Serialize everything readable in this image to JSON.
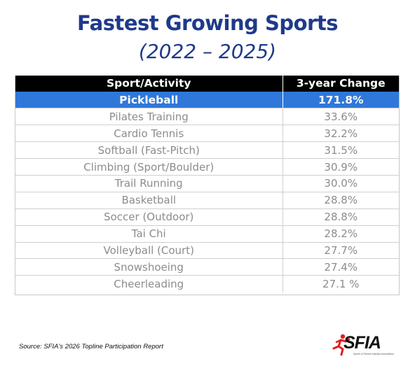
{
  "title": "Fastest Growing Sports",
  "subtitle": "(2022 – 2025)",
  "source": "Source: SFIA's 2026 Topline Participation Report",
  "logo": {
    "text": "SFIA",
    "tagline": "Sports & Fitness Industry Association",
    "accent_color": "#e02020"
  },
  "colors": {
    "title": "#1f3a8a",
    "header_bg": "#000000",
    "highlight_bg": "#2f78d9",
    "row_text": "#8c8c8c"
  },
  "chart_data": {
    "type": "table",
    "title": "Fastest Growing Sports",
    "subtitle": "(2022 – 2025)",
    "columns": [
      "Sport/Activity",
      "3-year Change"
    ],
    "rows": [
      {
        "sport": "Pickleball",
        "change": "171.8%",
        "highlight": true
      },
      {
        "sport": "Pilates Training",
        "change": "33.6%",
        "highlight": false
      },
      {
        "sport": "Cardio Tennis",
        "change": "32.2%",
        "highlight": false
      },
      {
        "sport": "Softball (Fast-Pitch)",
        "change": "31.5%",
        "highlight": false
      },
      {
        "sport": "Climbing (Sport/Boulder)",
        "change": "30.9%",
        "highlight": false
      },
      {
        "sport": "Trail Running",
        "change": "30.0%",
        "highlight": false
      },
      {
        "sport": "Basketball",
        "change": "28.8%",
        "highlight": false
      },
      {
        "sport": "Soccer (Outdoor)",
        "change": "28.8%",
        "highlight": false
      },
      {
        "sport": "Tai Chi",
        "change": "28.2%",
        "highlight": false
      },
      {
        "sport": "Volleyball (Court)",
        "change": "27.7%",
        "highlight": false
      },
      {
        "sport": "Snowshoeing",
        "change": "27.4%",
        "highlight": false
      },
      {
        "sport": "Cheerleading",
        "change": "27.1 %",
        "highlight": false
      }
    ]
  }
}
